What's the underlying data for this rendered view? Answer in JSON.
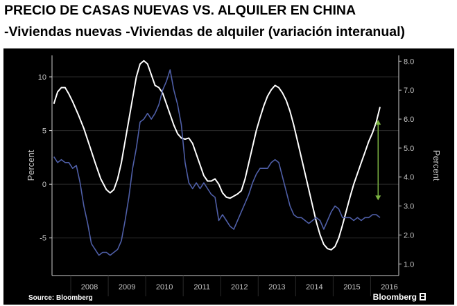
{
  "header": {
    "title": "PRECIO DE CASAS NUEVAS VS. ALQUILER EN CHINA",
    "subtitle_part1": "-Viviendas nuevas",
    "subtitle_part2": "-Viviendas de alquiler (variación interanual)"
  },
  "footer": {
    "source": "Source: Bloomberg",
    "brand": "Bloomberg"
  },
  "colors": {
    "background": "#000000",
    "new_homes_line": "#ffffff",
    "rental_line": "#4f5fa8",
    "arrow": "#7cb342",
    "axis": "#d0d0d0",
    "grid": "#2a2a2a"
  },
  "chart_data": {
    "type": "line",
    "title": "PRECIO DE CASAS NUEVAS VS. ALQUILER EN CHINA",
    "subtitle": "-Viviendas nuevas -Viviendas de alquiler (variación interanual)",
    "xlabel": "",
    "ylabel_left": "Percent",
    "ylabel_right": "Percent",
    "x_categories": [
      "2008",
      "2009",
      "2010",
      "2011",
      "2012",
      "2013",
      "2014",
      "2015",
      "2016"
    ],
    "xlim": [
      2007.5,
      2016.75
    ],
    "ylim_left": [
      -8.5,
      12
    ],
    "ylim_right": [
      0.6,
      8.2
    ],
    "yticks_left": [
      "10",
      "5",
      "0",
      "-5"
    ],
    "yticks_left_values": [
      10,
      5,
      0,
      -5
    ],
    "yticks_right": [
      "8.0",
      "7.0",
      "6.0",
      "5.0",
      "4.0",
      "3.0",
      "2.0",
      "1.0"
    ],
    "yticks_right_values": [
      8,
      7,
      6,
      5,
      4,
      3,
      2,
      1
    ],
    "grid": true,
    "annotations": [
      {
        "type": "double-arrow",
        "x": 2016.2,
        "y_left_from": -1.5,
        "y_left_to": 6.0
      }
    ],
    "series": [
      {
        "axis": "left",
        "color": "#ffffff",
        "points": [
          [
            2007.55,
            7.5
          ],
          [
            2007.65,
            8.6
          ],
          [
            2007.75,
            9.0
          ],
          [
            2007.85,
            9.0
          ],
          [
            2007.95,
            8.4
          ],
          [
            2008.05,
            7.7
          ],
          [
            2008.2,
            6.5
          ],
          [
            2008.35,
            5.2
          ],
          [
            2008.5,
            3.6
          ],
          [
            2008.65,
            2.0
          ],
          [
            2008.8,
            0.5
          ],
          [
            2008.95,
            -0.5
          ],
          [
            2009.05,
            -0.8
          ],
          [
            2009.15,
            -0.5
          ],
          [
            2009.25,
            0.5
          ],
          [
            2009.35,
            2.0
          ],
          [
            2009.45,
            4.0
          ],
          [
            2009.55,
            6.0
          ],
          [
            2009.65,
            8.0
          ],
          [
            2009.75,
            10.0
          ],
          [
            2009.85,
            11.2
          ],
          [
            2009.95,
            11.5
          ],
          [
            2010.05,
            11.2
          ],
          [
            2010.15,
            10.2
          ],
          [
            2010.25,
            9.2
          ],
          [
            2010.35,
            9.0
          ],
          [
            2010.45,
            8.5
          ],
          [
            2010.55,
            7.5
          ],
          [
            2010.65,
            6.5
          ],
          [
            2010.75,
            5.5
          ],
          [
            2010.85,
            4.7
          ],
          [
            2010.95,
            4.3
          ],
          [
            2011.05,
            4.2
          ],
          [
            2011.15,
            4.3
          ],
          [
            2011.25,
            3.8
          ],
          [
            2011.35,
            2.8
          ],
          [
            2011.45,
            1.8
          ],
          [
            2011.55,
            0.8
          ],
          [
            2011.65,
            0.3
          ],
          [
            2011.75,
            0.3
          ],
          [
            2011.85,
            0.5
          ],
          [
            2011.95,
            0.0
          ],
          [
            2012.05,
            -0.8
          ],
          [
            2012.15,
            -1.2
          ],
          [
            2012.25,
            -1.3
          ],
          [
            2012.35,
            -1.1
          ],
          [
            2012.45,
            -0.9
          ],
          [
            2012.55,
            -0.6
          ],
          [
            2012.65,
            0.5
          ],
          [
            2012.75,
            2.0
          ],
          [
            2012.85,
            3.5
          ],
          [
            2012.95,
            5.0
          ],
          [
            2013.05,
            6.2
          ],
          [
            2013.15,
            7.3
          ],
          [
            2013.25,
            8.2
          ],
          [
            2013.35,
            8.8
          ],
          [
            2013.45,
            9.2
          ],
          [
            2013.55,
            9.0
          ],
          [
            2013.65,
            8.5
          ],
          [
            2013.75,
            7.8
          ],
          [
            2013.85,
            6.8
          ],
          [
            2013.95,
            5.5
          ],
          [
            2014.05,
            4.0
          ],
          [
            2014.15,
            2.5
          ],
          [
            2014.25,
            1.0
          ],
          [
            2014.35,
            -0.5
          ],
          [
            2014.45,
            -2.0
          ],
          [
            2014.55,
            -3.5
          ],
          [
            2014.65,
            -4.7
          ],
          [
            2014.75,
            -5.6
          ],
          [
            2014.85,
            -6.0
          ],
          [
            2014.95,
            -6.1
          ],
          [
            2015.05,
            -5.8
          ],
          [
            2015.15,
            -5.0
          ],
          [
            2015.25,
            -3.8
          ],
          [
            2015.35,
            -2.5
          ],
          [
            2015.45,
            -1.2
          ],
          [
            2015.55,
            0.0
          ],
          [
            2015.65,
            1.0
          ],
          [
            2015.75,
            2.0
          ],
          [
            2015.85,
            3.0
          ],
          [
            2015.95,
            4.0
          ],
          [
            2016.05,
            4.8
          ],
          [
            2016.15,
            5.8
          ],
          [
            2016.25,
            7.2
          ]
        ]
      },
      {
        "axis": "right",
        "color": "#4f5fa8",
        "points": [
          [
            2007.55,
            4.7
          ],
          [
            2007.65,
            4.5
          ],
          [
            2007.75,
            4.6
          ],
          [
            2007.85,
            4.5
          ],
          [
            2007.95,
            4.5
          ],
          [
            2008.05,
            4.3
          ],
          [
            2008.15,
            4.4
          ],
          [
            2008.25,
            3.8
          ],
          [
            2008.35,
            3.0
          ],
          [
            2008.45,
            2.4
          ],
          [
            2008.55,
            1.7
          ],
          [
            2008.65,
            1.5
          ],
          [
            2008.75,
            1.3
          ],
          [
            2008.85,
            1.4
          ],
          [
            2008.95,
            1.4
          ],
          [
            2009.05,
            1.3
          ],
          [
            2009.15,
            1.4
          ],
          [
            2009.25,
            1.5
          ],
          [
            2009.35,
            1.8
          ],
          [
            2009.45,
            2.5
          ],
          [
            2009.55,
            3.3
          ],
          [
            2009.65,
            4.3
          ],
          [
            2009.75,
            5.0
          ],
          [
            2009.85,
            5.9
          ],
          [
            2009.95,
            6.0
          ],
          [
            2010.05,
            6.2
          ],
          [
            2010.15,
            6.0
          ],
          [
            2010.25,
            6.2
          ],
          [
            2010.35,
            6.5
          ],
          [
            2010.45,
            7.0
          ],
          [
            2010.55,
            7.3
          ],
          [
            2010.65,
            7.7
          ],
          [
            2010.75,
            7.0
          ],
          [
            2010.85,
            6.5
          ],
          [
            2010.95,
            5.8
          ],
          [
            2011.05,
            4.5
          ],
          [
            2011.15,
            3.8
          ],
          [
            2011.25,
            3.6
          ],
          [
            2011.35,
            3.8
          ],
          [
            2011.45,
            3.6
          ],
          [
            2011.55,
            3.8
          ],
          [
            2011.65,
            3.6
          ],
          [
            2011.75,
            3.4
          ],
          [
            2011.85,
            3.3
          ],
          [
            2011.95,
            2.5
          ],
          [
            2012.05,
            2.7
          ],
          [
            2012.15,
            2.5
          ],
          [
            2012.25,
            2.3
          ],
          [
            2012.35,
            2.2
          ],
          [
            2012.45,
            2.5
          ],
          [
            2012.55,
            2.8
          ],
          [
            2012.65,
            3.1
          ],
          [
            2012.75,
            3.4
          ],
          [
            2012.85,
            3.8
          ],
          [
            2012.95,
            4.1
          ],
          [
            2013.05,
            4.3
          ],
          [
            2013.15,
            4.3
          ],
          [
            2013.25,
            4.3
          ],
          [
            2013.35,
            4.5
          ],
          [
            2013.45,
            4.6
          ],
          [
            2013.55,
            4.5
          ],
          [
            2013.65,
            4.0
          ],
          [
            2013.75,
            3.5
          ],
          [
            2013.85,
            3.0
          ],
          [
            2013.95,
            2.7
          ],
          [
            2014.05,
            2.6
          ],
          [
            2014.15,
            2.6
          ],
          [
            2014.25,
            2.5
          ],
          [
            2014.35,
            2.4
          ],
          [
            2014.45,
            2.5
          ],
          [
            2014.55,
            2.6
          ],
          [
            2014.65,
            2.5
          ],
          [
            2014.75,
            2.2
          ],
          [
            2014.85,
            2.5
          ],
          [
            2014.95,
            2.8
          ],
          [
            2015.05,
            3.0
          ],
          [
            2015.15,
            2.9
          ],
          [
            2015.25,
            2.6
          ],
          [
            2015.35,
            2.6
          ],
          [
            2015.45,
            2.6
          ],
          [
            2015.55,
            2.5
          ],
          [
            2015.65,
            2.6
          ],
          [
            2015.75,
            2.5
          ],
          [
            2015.85,
            2.6
          ],
          [
            2015.95,
            2.6
          ],
          [
            2016.05,
            2.7
          ],
          [
            2016.15,
            2.7
          ],
          [
            2016.25,
            2.6
          ]
        ]
      }
    ]
  }
}
